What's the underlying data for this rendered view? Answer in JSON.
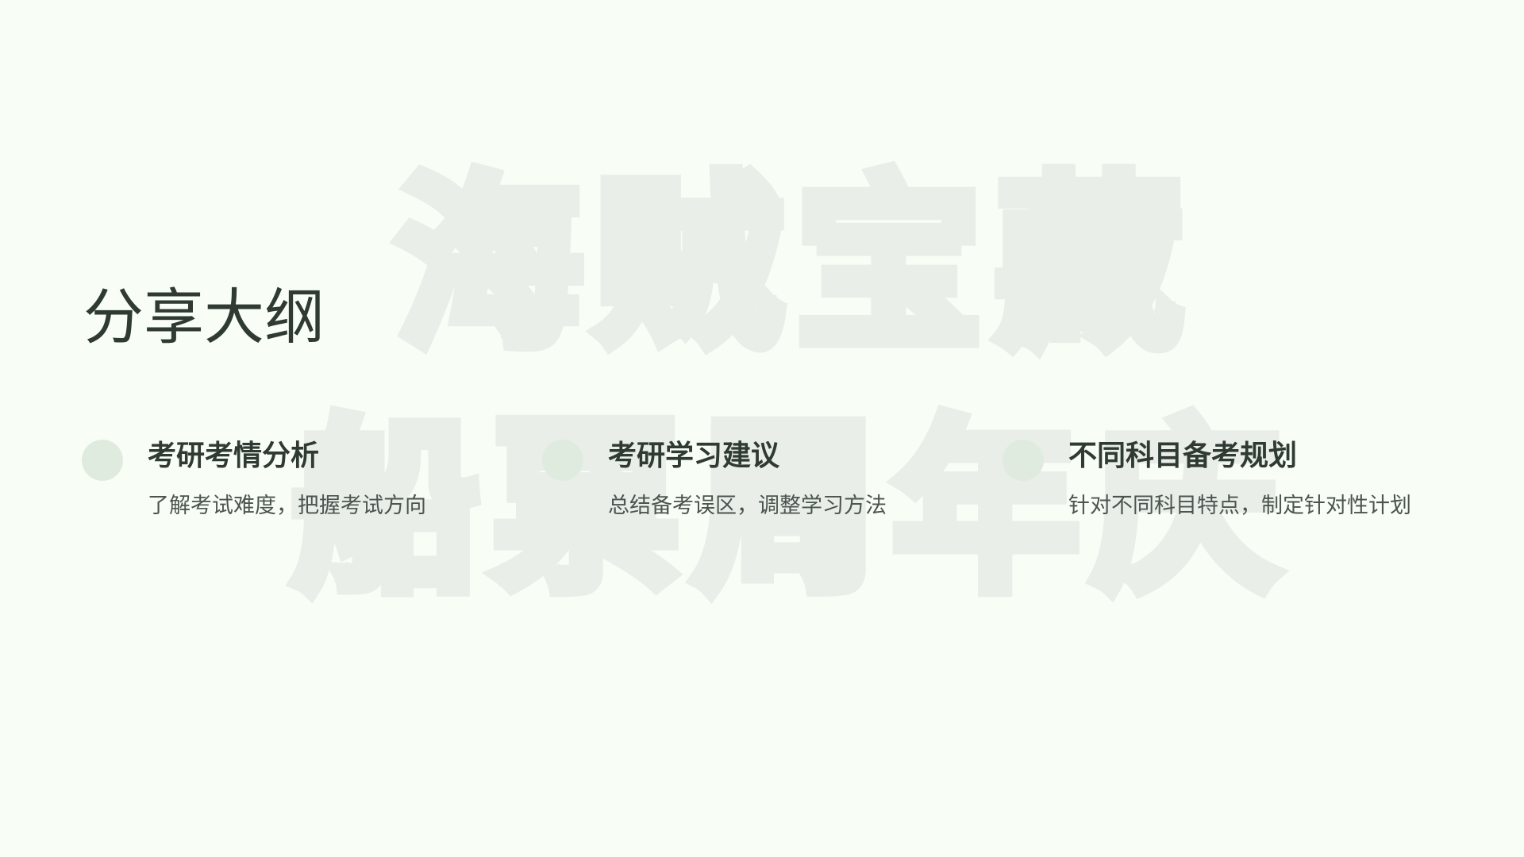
{
  "watermark": {
    "line1": "海贼宝藏",
    "line2": "船票周年庆"
  },
  "slide": {
    "title": "分享大纲"
  },
  "outline": {
    "items": [
      {
        "title": "考研考情分析",
        "desc": "了解考试难度，把握考试方向"
      },
      {
        "title": "考研学习建议",
        "desc": "总结备考误区，调整学习方法"
      },
      {
        "title": "不同科目备考规划",
        "desc": "针对不同科目特点，制定针对性计划"
      }
    ]
  },
  "colors": {
    "background": "#f8fdf6",
    "text": "#2f3a33",
    "muted": "#4b544e",
    "dot": "#e0ebe0",
    "watermark": "#e9eee8"
  }
}
